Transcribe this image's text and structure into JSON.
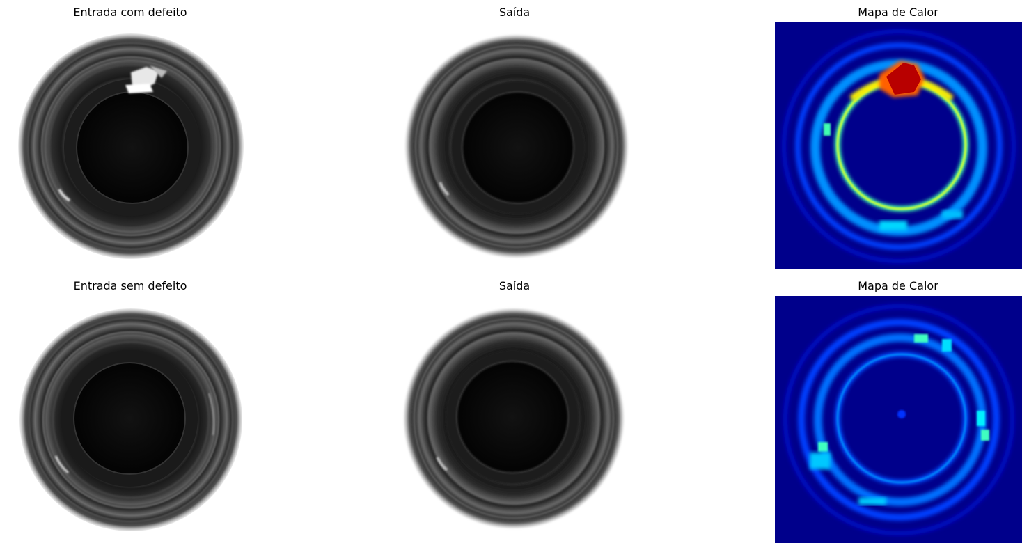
{
  "figure": {
    "rows": [
      {
        "input_title": "Entrada com defeito",
        "output_title": "Saída",
        "heatmap_title": "Mapa de Calor",
        "has_defect": true
      },
      {
        "input_title": "Entrada sem defeito",
        "output_title": "Saída",
        "heatmap_title": "Mapa de Calor",
        "has_defect": false
      }
    ]
  },
  "colors": {
    "heatmap_background": "#00008b",
    "heatmap_low": "#0000ff",
    "heatmap_mid": "#00e5ff",
    "heatmap_high": "#ffff00",
    "heatmap_peak": "#b40000",
    "bottle_dark": "#050505",
    "bottle_ring": "#3c3c3c"
  }
}
